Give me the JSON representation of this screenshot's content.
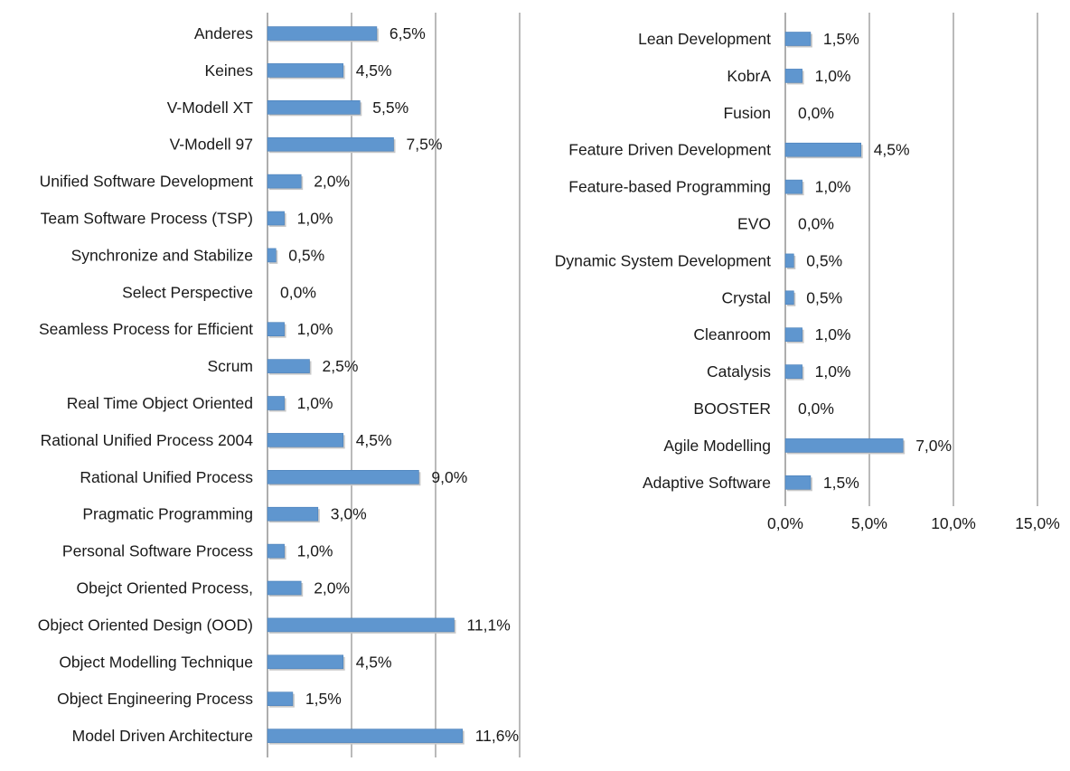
{
  "chart_data": [
    {
      "type": "bar",
      "orientation": "horizontal",
      "title": "",
      "xlabel": "",
      "ylabel": "",
      "xlim": [
        0,
        15
      ],
      "grid": true,
      "categories": [
        "Anderes",
        "Keines",
        "V-Modell XT",
        "V-Modell 97",
        "Unified Software Development",
        "Team Software Process (TSP)",
        "Synchronize and Stabilize",
        "Select Perspective",
        "Seamless Process for Efficient",
        "Scrum",
        "Real Time Object Oriented",
        "Rational Unified Process 2004",
        "Rational Unified Process",
        "Pragmatic Programming",
        "Personal Software Process",
        "Obejct Oriented Process,",
        "Object Oriented Design (OOD)",
        "Object Modelling Technique",
        "Object Engineering Process",
        "Model Driven Architecture"
      ],
      "values": [
        6.5,
        4.5,
        5.5,
        7.5,
        2.0,
        1.0,
        0.5,
        0.0,
        1.0,
        2.5,
        1.0,
        4.5,
        9.0,
        3.0,
        1.0,
        2.0,
        11.1,
        4.5,
        1.5,
        11.6
      ],
      "value_labels": [
        "6,5%",
        "4,5%",
        "5,5%",
        "7,5%",
        "2,0%",
        "1,0%",
        "0,5%",
        "0,0%",
        "1,0%",
        "2,5%",
        "1,0%",
        "4,5%",
        "9,0%",
        "3,0%",
        "1,0%",
        "2,0%",
        "11,1%",
        "4,5%",
        "1,5%",
        "11,6%"
      ],
      "x_tick_labels": []
    },
    {
      "type": "bar",
      "orientation": "horizontal",
      "title": "",
      "xlabel": "",
      "ylabel": "",
      "xlim": [
        0,
        15
      ],
      "grid": true,
      "categories": [
        "Lean Development",
        "KobrA",
        "Fusion",
        "Feature Driven Development",
        "Feature-based Programming",
        "EVO",
        "Dynamic System Development",
        "Crystal",
        "Cleanroom",
        "Catalysis",
        "BOOSTER",
        "Agile Modelling",
        "Adaptive Software"
      ],
      "values": [
        1.5,
        1.0,
        0.0,
        4.5,
        1.0,
        0.0,
        0.5,
        0.5,
        1.0,
        1.0,
        0.0,
        7.0,
        1.5
      ],
      "value_labels": [
        "1,5%",
        "1,0%",
        "0,0%",
        "4,5%",
        "1,0%",
        "0,0%",
        "0,5%",
        "0,5%",
        "1,0%",
        "1,0%",
        "0,0%",
        "7,0%",
        "1,5%"
      ],
      "x_tick_values": [
        0,
        5,
        10,
        15
      ],
      "x_tick_labels": [
        "0,0%",
        "5,0%",
        "10,0%",
        "15,0%"
      ]
    }
  ],
  "colors": {
    "bar_fill": "#5f96cf",
    "bar_edge": "#4a7fb8",
    "grid": "#8c8c8c",
    "axis": "#8c8c8c",
    "text": "#1a1a1a"
  }
}
